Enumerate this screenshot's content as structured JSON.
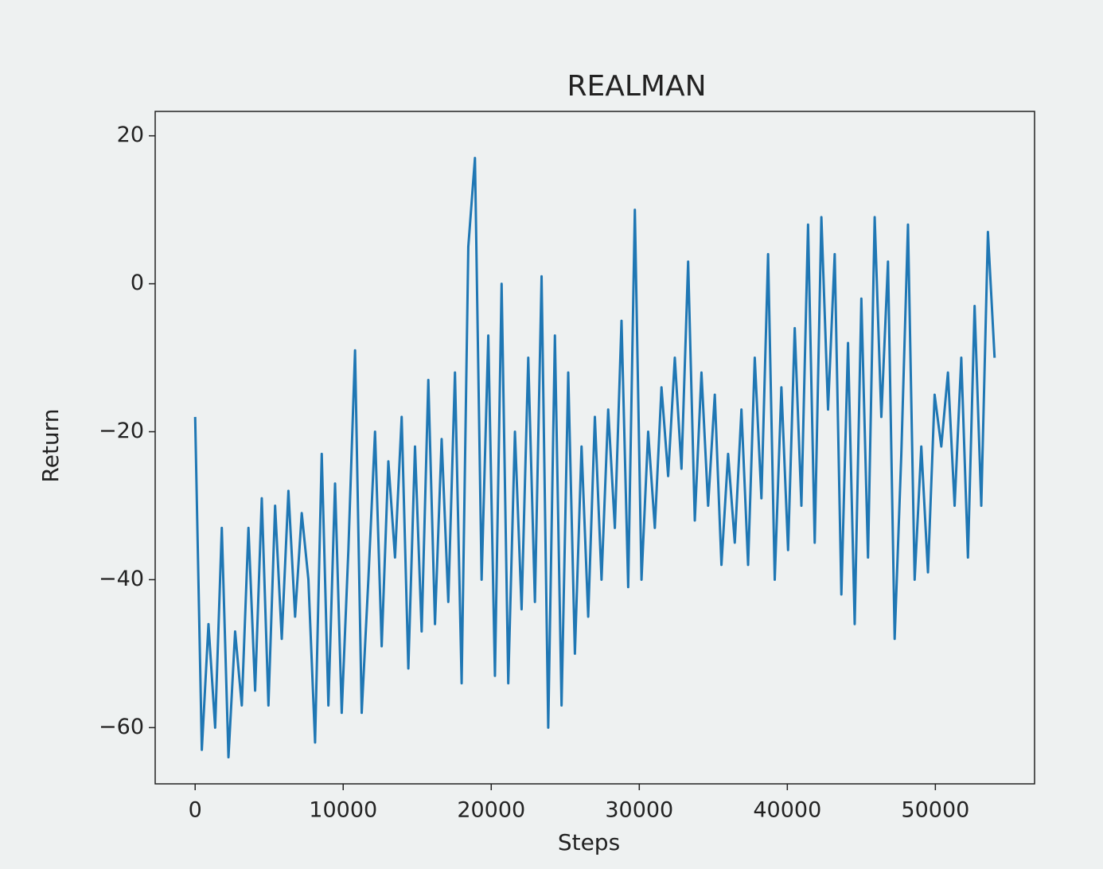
{
  "chart_data": {
    "type": "line",
    "title": "REALMAN",
    "x_label": "Steps",
    "y_label": "Return",
    "x": [
      0,
      450,
      900,
      1350,
      1800,
      2250,
      2700,
      3150,
      3600,
      4050,
      4500,
      4950,
      5400,
      5850,
      6300,
      6750,
      7200,
      7650,
      8100,
      8550,
      9000,
      9450,
      9900,
      10350,
      10800,
      11250,
      11700,
      12150,
      12600,
      13050,
      13500,
      13950,
      14400,
      14850,
      15300,
      15750,
      16200,
      16650,
      17100,
      17550,
      18000,
      18450,
      18900,
      19350,
      19800,
      20250,
      20700,
      21150,
      21600,
      22050,
      22500,
      22950,
      23400,
      23850,
      24300,
      24750,
      25200,
      25650,
      26100,
      26550,
      27000,
      27450,
      27900,
      28350,
      28800,
      29250,
      29700,
      30150,
      30600,
      31050,
      31500,
      31950,
      32400,
      32850,
      33300,
      33750,
      34200,
      34650,
      35100,
      35550,
      36000,
      36450,
      36900,
      37350,
      37800,
      38250,
      38700,
      39150,
      39600,
      40050,
      40500,
      40950,
      41400,
      41850,
      42300,
      42750,
      43200,
      43650,
      44100,
      44550,
      45000,
      45450,
      45900,
      46350,
      46800,
      47250,
      47700,
      48150,
      48600,
      49050,
      49500,
      49950,
      50400,
      50850,
      51300,
      51750,
      52200,
      52650,
      53100,
      53550,
      54000
    ],
    "series": [
      {
        "name": "Return",
        "color": "#1f77b4",
        "values": [
          -18,
          -63,
          -46,
          -60,
          -33,
          -64,
          -47,
          -57,
          -33,
          -55,
          -29,
          -57,
          -30,
          -48,
          -28,
          -45,
          -31,
          -40,
          -62,
          -23,
          -57,
          -27,
          -58,
          -36,
          -9,
          -58,
          -40,
          -20,
          -49,
          -24,
          -37,
          -18,
          -52,
          -22,
          -47,
          -13,
          -46,
          -21,
          -43,
          -12,
          -54,
          5,
          17,
          -40,
          -7,
          -53,
          0,
          -54,
          -20,
          -44,
          -10,
          -43,
          1,
          -60,
          -7,
          -57,
          -12,
          -50,
          -22,
          -45,
          -18,
          -40,
          -17,
          -33,
          -5,
          -41,
          10,
          -40,
          -20,
          -33,
          -14,
          -26,
          -10,
          -25,
          3,
          -32,
          -12,
          -30,
          -15,
          -38,
          -23,
          -35,
          -17,
          -38,
          -10,
          -29,
          4,
          -40,
          -14,
          -36,
          -6,
          -30,
          8,
          -35,
          9,
          -17,
          4,
          -42,
          -8,
          -46,
          -2,
          -37,
          9,
          -18,
          3,
          -48,
          -23,
          8,
          -40,
          -22,
          -39,
          -15,
          -22,
          -12,
          -30,
          -10,
          -37,
          -3,
          -30,
          7,
          -10
        ]
      }
    ],
    "xlim": [
      -2700,
      56700
    ],
    "ylim": [
      -67.6,
      23.3
    ],
    "xticks": [
      0,
      10000,
      20000,
      30000,
      40000,
      50000
    ],
    "yticks": [
      {
        "value": -60,
        "label": "−60"
      },
      {
        "value": -40,
        "label": "−40"
      },
      {
        "value": -20,
        "label": "−20"
      },
      0,
      20
    ]
  }
}
